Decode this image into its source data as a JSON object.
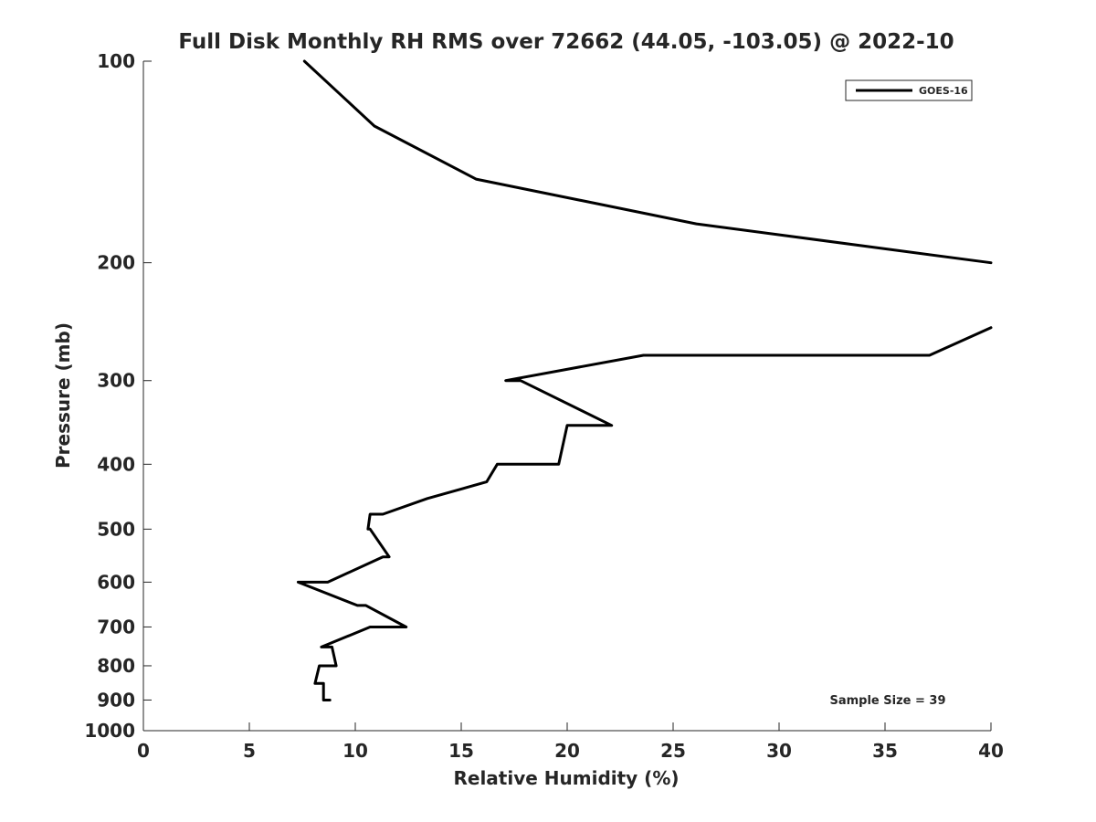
{
  "chart_data": {
    "type": "line",
    "title": "Full Disk Monthly RH RMS over 72662 (44.05, -103.05) @ 2022-10",
    "xlabel": "Relative Humidity (%)",
    "ylabel": "Pressure (mb)",
    "xlim": [
      0,
      40
    ],
    "ylim": [
      100,
      1000
    ],
    "yscale": "log",
    "y_inverted": true,
    "grid": false,
    "legend_location": "top-right",
    "xticks": [
      0,
      5,
      10,
      15,
      20,
      25,
      30,
      35,
      40
    ],
    "yticks": [
      100,
      200,
      300,
      400,
      500,
      600,
      700,
      800,
      900,
      1000
    ],
    "annotation": "Sample Size = 39",
    "line_color": "#000000",
    "series": [
      {
        "name": "GOES-16",
        "segments": [
          {
            "x": [
              7.6,
              10.9,
              15.7,
              26.1,
              40.0
            ],
            "y": [
              100,
              125,
              150,
              175,
              200
            ]
          },
          {
            "x": [
              40.0,
              37.1,
              23.6,
              17.1,
              17.8,
              22.1,
              20.0,
              19.6,
              16.7,
              16.2,
              13.4,
              11.3,
              10.7,
              10.6,
              10.7,
              11.6,
              11.3,
              8.7,
              7.3,
              10.1,
              10.5,
              12.4,
              10.7,
              8.4,
              8.9,
              9.1,
              8.3,
              8.1,
              8.5,
              8.5,
              8.8
            ],
            "y": [
              250,
              275,
              275,
              300,
              300,
              350,
              350,
              400,
              400,
              425,
              450,
              475,
              475,
              500,
              500,
              550,
              550,
              600,
              600,
              650,
              650,
              700,
              700,
              750,
              750,
              800,
              800,
              850,
              850,
              900,
              900
            ]
          }
        ]
      }
    ]
  }
}
